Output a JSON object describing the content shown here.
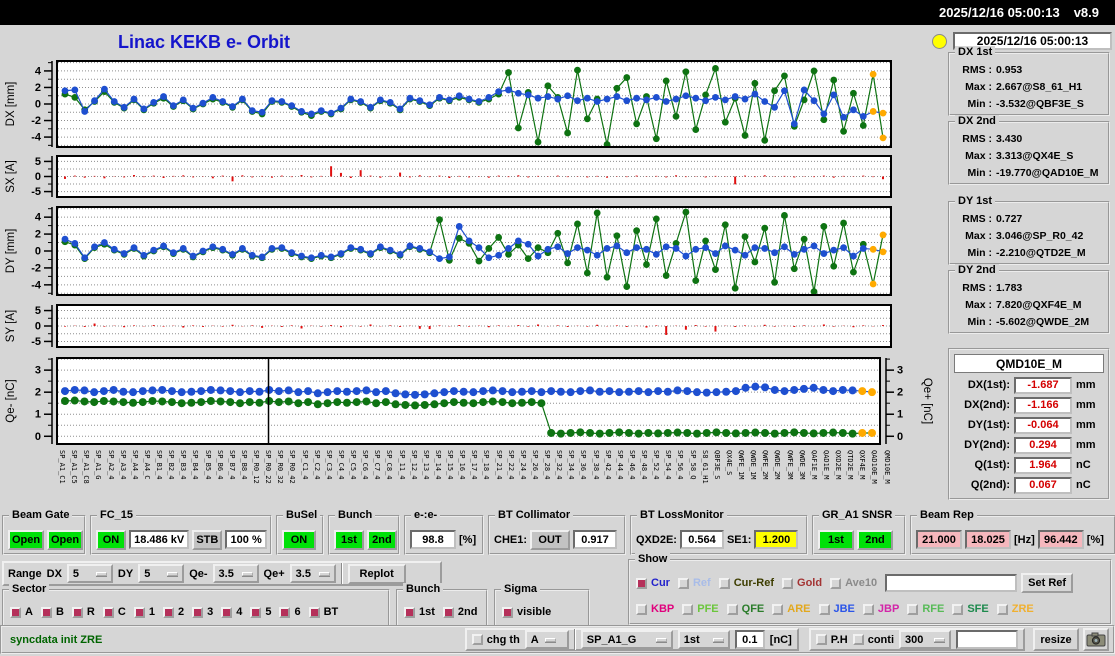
{
  "titlebar": {
    "datetime": "2025/12/16 05:00:13",
    "version": "v8.9"
  },
  "header": {
    "title": "Linac KEKB e- Orbit",
    "timestamp": "2025/12/16 05:00:13"
  },
  "colors": {
    "blue": "#1e4fd0",
    "green": "#0e7312",
    "red": "#e01010",
    "orange": "#ffaa00",
    "title_blue": "#1515cc",
    "value_red": "#d40000",
    "status_green": "#006400",
    "checked": "#b5305a",
    "lamp_yellow": "#ffff00"
  },
  "plot_order": [
    "dx",
    "sx",
    "dy",
    "sy",
    "q"
  ],
  "plots": {
    "dx": {
      "ylabel": "DX [mm]",
      "ymin": -5.2,
      "ymax": 5.2,
      "yticks": [
        4,
        2,
        0,
        -2,
        -4
      ],
      "grid_step": 1,
      "tail_orange": 2,
      "series": [
        {
          "color": "green",
          "values": [
            1.2,
            0.8,
            -0.7,
            0.3,
            1.5,
            0.2,
            -0.5,
            0.5,
            -0.7,
            0.1,
            0.7,
            -0.3,
            0.4,
            -0.6,
            0.0,
            0.6,
            0.2,
            -0.4,
            0.5,
            -0.9,
            -1.2,
            0.3,
            0.2,
            -0.3,
            -1.0,
            -1.4,
            -0.9,
            -1.2,
            -0.6,
            0.5,
            0.2,
            -0.5,
            0.4,
            0.1,
            -0.7,
            0.6,
            0.3,
            -0.2,
            0.7,
            0.4,
            0.8,
            0.5,
            0.2,
            0.6,
            1.2,
            3.8,
            -2.9,
            1.4,
            -4.6,
            2.2,
            0.8,
            -3.5,
            4.1,
            -1.8,
            0.6,
            -4.9,
            1.9,
            3.2,
            -2.4,
            0.9,
            -4.2,
            2.8,
            -1.5,
            3.9,
            -3.1,
            1.1,
            4.3,
            -2.2,
            0.7,
            -3.8,
            2.5,
            -4.4,
            1.6,
            3.4,
            -2.7,
            0.5,
            4.0,
            -1.9,
            2.9,
            -3.3,
            1.3,
            -2.6,
            3.6,
            -4.1
          ]
        },
        {
          "color": "blue",
          "values": [
            1.6,
            1.7,
            -0.9,
            0.4,
            1.8,
            0.3,
            -0.4,
            0.6,
            -0.6,
            0.2,
            0.9,
            -0.2,
            0.5,
            -0.5,
            0.1,
            0.8,
            0.3,
            -0.3,
            0.6,
            -0.8,
            -1.0,
            0.4,
            0.3,
            -0.2,
            -0.9,
            -1.2,
            -0.8,
            -1.1,
            -0.5,
            0.6,
            0.3,
            -0.4,
            0.5,
            0.2,
            -0.6,
            0.7,
            0.4,
            -0.1,
            0.8,
            0.5,
            1.0,
            0.6,
            0.3,
            0.8,
            1.5,
            1.7,
            1.3,
            1.1,
            0.7,
            0.9,
            0.6,
            1.0,
            0.4,
            0.7,
            0.3,
            0.6,
            0.9,
            0.4,
            0.7,
            0.5,
            0.8,
            0.3,
            0.6,
            1.0,
            0.7,
            0.4,
            0.8,
            0.5,
            0.9,
            0.6,
            1.2,
            0.3,
            -0.4,
            1.6,
            -2.4,
            1.7,
            0.4,
            -1.2,
            1.1,
            -1.6,
            -0.7,
            -1.5,
            -0.9,
            -1.1
          ]
        }
      ]
    },
    "sx": {
      "ylabel": "SX [A]",
      "ymin": -6.8,
      "ymax": 6.8,
      "yticks": [
        5,
        0,
        -5
      ],
      "grid_step": 2.5,
      "bars": [
        -0.8,
        0.3,
        -0.4,
        0.2,
        -0.6,
        0.1,
        -0.3,
        0.5,
        -0.2,
        0.3,
        -0.5,
        0.2,
        0.4,
        -0.3,
        0.1,
        -0.6,
        0.3,
        -1.6,
        0.4,
        -0.3,
        0.2,
        -0.4,
        0.3,
        -0.2,
        0.5,
        -0.3,
        0.2,
        3.4,
        1.2,
        -0.5,
        2.1,
        0.3,
        -0.4,
        0.2,
        1.3,
        -0.3,
        0.4,
        -0.2,
        0.3,
        -0.5,
        0.2,
        -0.3,
        0.1,
        -0.4,
        0.3,
        -0.2,
        0.4,
        -0.3,
        0.2,
        -0.1,
        0.3,
        -0.2,
        0.1,
        -0.3,
        0.2,
        -0.4,
        0.1,
        -0.2,
        0.3,
        -0.1,
        0.2,
        -0.3,
        0.4,
        -0.2,
        0.1,
        -0.3,
        0.2,
        -0.1,
        -2.6,
        0.3,
        -0.2,
        0.4,
        -0.1,
        0.2,
        -0.3,
        0.1,
        -0.2,
        0.3,
        -0.4,
        0.2,
        -0.1,
        0.3,
        -0.2,
        -0.9
      ]
    },
    "dy": {
      "ylabel": "DY [mm]",
      "ymin": -5.2,
      "ymax": 5.2,
      "yticks": [
        4,
        2,
        0,
        -2,
        -4
      ],
      "grid_step": 1,
      "tail_orange": 2,
      "series": [
        {
          "color": "green",
          "values": [
            1.1,
            0.7,
            -0.9,
            0.4,
            0.8,
            0.1,
            -0.4,
            0.3,
            -0.6,
            0.0,
            0.5,
            -0.3,
            0.2,
            -0.7,
            -0.1,
            0.4,
            0.1,
            -0.5,
            0.2,
            -0.6,
            -0.8,
            0.2,
            0.3,
            -0.3,
            -0.7,
            -0.9,
            -0.6,
            -0.8,
            -0.4,
            0.3,
            0.1,
            -0.4,
            0.4,
            0.0,
            -0.5,
            0.5,
            0.2,
            -0.2,
            3.7,
            -1.1,
            1.5,
            0.9,
            -1.2,
            0.3,
            1.6,
            -0.4,
            0.7,
            -0.9,
            0.4,
            -0.2,
            2.1,
            -1.4,
            3.2,
            -2.6,
            4.5,
            -3.1,
            1.8,
            -4.2,
            2.4,
            -1.6,
            3.8,
            -2.9,
            0.9,
            4.6,
            -3.5,
            1.2,
            -2.2,
            3.1,
            -4.4,
            1.7,
            -1.3,
            2.7,
            -3.7,
            4.2,
            -2.1,
            1.4,
            -4.8,
            2.9,
            -1.8,
            3.3,
            -2.5,
            0.8,
            -3.9,
            1.9
          ]
        },
        {
          "color": "blue",
          "values": [
            1.4,
            0.9,
            -0.8,
            0.5,
            1.0,
            0.2,
            -0.3,
            0.4,
            -0.5,
            0.1,
            0.6,
            -0.2,
            0.3,
            -0.6,
            0.0,
            0.5,
            0.2,
            -0.4,
            0.3,
            -0.5,
            -0.7,
            0.3,
            0.4,
            -0.2,
            -0.6,
            -0.8,
            -0.5,
            -0.7,
            -0.3,
            0.4,
            0.2,
            -0.3,
            0.5,
            0.1,
            -0.4,
            0.6,
            0.3,
            -0.1,
            -0.9,
            -0.7,
            2.9,
            1.2,
            0.4,
            -0.8,
            -0.5,
            0.3,
            1.2,
            0.8,
            -0.6,
            0.2,
            0.5,
            -0.3,
            0.4,
            0.1,
            -0.5,
            0.3,
            0.6,
            -0.2,
            0.4,
            0.2,
            -0.4,
            0.5,
            0.3,
            -0.6,
            0.2,
            0.4,
            -0.3,
            0.6,
            0.1,
            -0.5,
            0.4,
            0.3,
            -0.2,
            0.5,
            -0.4,
            0.2,
            0.6,
            -0.3,
            0.1,
            0.4,
            -0.6,
            0.3,
            0.2,
            -0.1
          ]
        }
      ]
    },
    "sy": {
      "ylabel": "SY [A]",
      "ymin": -6.8,
      "ymax": 6.8,
      "yticks": [
        5,
        0,
        -5
      ],
      "grid_step": 2.5,
      "bars": [
        -0.2,
        0.1,
        -0.3,
        0.8,
        -0.2,
        0.1,
        -0.4,
        0.2,
        -0.1,
        0.3,
        -0.2,
        0.1,
        -0.5,
        0.2,
        -0.3,
        0.1,
        -0.2,
        0.4,
        -0.1,
        0.2,
        -0.6,
        0.1,
        -0.3,
        0.2,
        -0.8,
        0.1,
        -0.2,
        0.3,
        -0.4,
        0.1,
        -0.2,
        0.5,
        -0.1,
        0.2,
        -0.3,
        0.1,
        -0.9,
        -1.0,
        0.2,
        -0.1,
        0.3,
        -0.2,
        0.1,
        -0.4,
        0.2,
        -0.1,
        0.3,
        -0.2,
        0.5,
        -0.1,
        0.2,
        -0.3,
        0.1,
        -0.2,
        0.4,
        -0.1,
        0.2,
        -0.3,
        0.1,
        -0.5,
        0.2,
        -2.9,
        0.1,
        -1.2,
        0.3,
        -0.2,
        -1.8,
        0.1,
        -0.3,
        0.2,
        -0.1,
        0.4,
        -0.2,
        0.1,
        -0.3,
        0.2,
        -0.1,
        0.5,
        -0.2,
        0.1,
        -0.4,
        0.2,
        -0.1,
        0.3
      ]
    },
    "q": {
      "ylabel": "Qe- [nC]",
      "ylabel_right": "Qe+ [nC]",
      "ymin": -0.35,
      "ymax": 3.55,
      "yticks": [
        3,
        2,
        1,
        0
      ],
      "grid_step": 0.5,
      "tail_orange": 2,
      "vline": 0.257,
      "series": [
        {
          "color": "green",
          "values": [
            1.6,
            1.62,
            1.58,
            1.55,
            1.6,
            1.58,
            1.55,
            1.52,
            1.55,
            1.6,
            1.58,
            1.55,
            1.5,
            1.52,
            1.55,
            1.6,
            1.58,
            1.55,
            1.5,
            1.55,
            1.52,
            1.6,
            1.55,
            1.58,
            1.5,
            1.55,
            1.45,
            1.5,
            1.55,
            1.52,
            1.55,
            1.58,
            1.5,
            1.55,
            1.45,
            1.42,
            1.4,
            1.42,
            1.45,
            1.5,
            1.55,
            1.52,
            1.5,
            1.55,
            1.58,
            1.55,
            1.5,
            1.52,
            1.55,
            1.5,
            0.15,
            0.12,
            0.15,
            0.18,
            0.15,
            0.12,
            0.15,
            0.18,
            0.15,
            0.12,
            0.15,
            0.13,
            0.15,
            0.17,
            0.15,
            0.12,
            0.15,
            0.18,
            0.15,
            0.13,
            0.15,
            0.17,
            0.15,
            0.12,
            0.15,
            0.18,
            0.15,
            0.13,
            0.15,
            0.17,
            0.15,
            0.12,
            0.15,
            0.15
          ]
        },
        {
          "color": "blue",
          "values": [
            2.05,
            2.1,
            2.08,
            2.0,
            2.05,
            2.1,
            2.02,
            2.0,
            2.05,
            2.08,
            2.1,
            2.05,
            2.0,
            2.02,
            2.05,
            2.1,
            2.08,
            2.05,
            2.0,
            2.05,
            2.02,
            2.1,
            2.05,
            2.08,
            2.0,
            2.05,
            1.95,
            2.0,
            2.05,
            2.02,
            2.05,
            2.08,
            2.0,
            2.05,
            1.95,
            1.9,
            1.88,
            1.9,
            1.95,
            2.0,
            2.05,
            2.02,
            2.0,
            2.05,
            2.08,
            2.05,
            2.0,
            2.02,
            2.05,
            2.0,
            2.05,
            2.02,
            2.0,
            2.05,
            2.08,
            2.02,
            2.05,
            2.0,
            2.02,
            2.05,
            2.0,
            2.05,
            2.02,
            2.08,
            2.05,
            2.0,
            1.98,
            2.0,
            2.02,
            2.05,
            2.2,
            2.25,
            2.22,
            2.1,
            2.05,
            2.1,
            2.15,
            2.2,
            2.1,
            2.05,
            2.1,
            2.08,
            2.05,
            2.0
          ]
        }
      ]
    }
  },
  "xaxis_labels": [
    "SP_A1_C1",
    "SP_A1_C5",
    "SP_A1_C8",
    "SP_A1_G",
    "SP_A2_4",
    "SP_A3_4",
    "SP_A4_4",
    "SP_A4_C",
    "SP_B1_4",
    "SP_B2_4",
    "SP_B3_4",
    "SP_B4_4",
    "SP_B5_4",
    "SP_B6_4",
    "SP_B7_4",
    "SP_B8_4",
    "SP_R0_12",
    "SP_R0_22",
    "SP_R0_32",
    "SP_R0_42",
    "SP_C1_4",
    "SP_C2_4",
    "SP_C3_4",
    "SP_C4_4",
    "SP_C5_4",
    "SP_C6_4",
    "SP_C7_4",
    "SP_C8_4",
    "SP_11_4",
    "SP_12_4",
    "SP_13_4",
    "SP_14_4",
    "SP_15_4",
    "SP_16_4",
    "SP_17_4",
    "SP_18_4",
    "SP_21_4",
    "SP_22_4",
    "SP_24_4",
    "SP_26_4",
    "SP_28_4",
    "SP_32_4",
    "SP_34_4",
    "SP_36_4",
    "SP_38_4",
    "SP_42_4",
    "SP_44_4",
    "SP_46_4",
    "SP_48_4",
    "SP_52_4",
    "SP_54_4",
    "SP_56_4",
    "SP_58_Q",
    "S8_61_H1",
    "QBF3E_S",
    "QX4E_S",
    "QWFE_1M",
    "QWDE_1M",
    "QWFE_2M",
    "QWDE_2M",
    "QWFE_3M",
    "QWDE_3M",
    "QAF1E_M",
    "QAD1E_M",
    "QXD2E_M",
    "QTD2E_M",
    "QXF4E_M",
    "QAD10E_M",
    "QMD10E_M"
  ],
  "right_panel": {
    "labels": {
      "rms": "RMS :",
      "max": "Max :",
      "min": "Min :"
    },
    "stats": [
      {
        "name": "DX 1st",
        "rms": "0.953",
        "max": "2.667@S8_61_H1",
        "min": "-3.532@QBF3E_S"
      },
      {
        "name": "DX 2nd",
        "rms": "3.430",
        "max": "3.313@QX4E_S",
        "min": "-19.770@QAD10E_M"
      },
      {
        "name": "DY 1st",
        "rms": "0.727",
        "max": "3.046@SP_R0_42",
        "min": "-2.210@QTD2E_M"
      },
      {
        "name": "DY 2nd",
        "rms": "1.783",
        "max": "7.820@QXF4E_M",
        "min": "-5.602@QWDE_2M"
      }
    ],
    "monitor": {
      "title": "QMD10E_M",
      "rows": [
        {
          "label": "DX(1st):",
          "value": "-1.687",
          "unit": "mm"
        },
        {
          "label": "DX(2nd):",
          "value": "-1.166",
          "unit": "mm"
        },
        {
          "label": "DY(1st):",
          "value": "-0.064",
          "unit": "mm"
        },
        {
          "label": "DY(2nd):",
          "value": "0.294",
          "unit": "mm"
        },
        {
          "label": "Q(1st):",
          "value": "1.964",
          "unit": "nC"
        },
        {
          "label": "Q(2nd):",
          "value": "0.067",
          "unit": "nC"
        }
      ]
    }
  },
  "controls": {
    "beam_gate": {
      "label": "Beam Gate",
      "buttons": [
        "Open",
        "Open"
      ]
    },
    "fc15": {
      "label": "FC_15",
      "on": "ON",
      "kv": "18.486 kV",
      "stb": "STB",
      "pct": "100 %"
    },
    "busel": {
      "label": "BuSel",
      "on": "ON"
    },
    "bunch": {
      "label": "Bunch",
      "buttons": [
        "1st",
        "2nd"
      ]
    },
    "ee": {
      "label": "e-:e-",
      "value": "98.8",
      "unit": "[%]"
    },
    "bt_collimator": {
      "label": "BT Collimator",
      "che1_label": "CHE1:",
      "che1_state": "OUT",
      "value": "0.917"
    },
    "bt_lossmonitor": {
      "label": "BT LossMonitor",
      "qxd2e_label": "QXD2E:",
      "qxd2e": "0.564",
      "se1_label": "SE1:",
      "se1": "1.200"
    },
    "gr_a1": {
      "label": "GR_A1 SNSR",
      "buttons": [
        "1st",
        "2nd"
      ]
    },
    "beam_rep": {
      "label": "Beam Rep",
      "v1": "21.000",
      "v2": "18.025",
      "hz": "[Hz]",
      "v3": "96.442",
      "pct": "[%]"
    }
  },
  "range_row": {
    "label": "Range",
    "items": [
      {
        "label": "DX",
        "value": "5"
      },
      {
        "label": "DY",
        "value": "5"
      },
      {
        "label": "Qe-",
        "value": "3.5"
      },
      {
        "label": "Qe+",
        "value": "3.5"
      }
    ],
    "replot": "Replot"
  },
  "sector": {
    "label": "Sector",
    "items": [
      {
        "label": "A",
        "checked": true
      },
      {
        "label": "B",
        "checked": true
      },
      {
        "label": "R",
        "checked": true
      },
      {
        "label": "C",
        "checked": true
      },
      {
        "label": "1",
        "checked": true
      },
      {
        "label": "2",
        "checked": true
      },
      {
        "label": "3",
        "checked": true
      },
      {
        "label": "4",
        "checked": true
      },
      {
        "label": "5",
        "checked": true
      },
      {
        "label": "6",
        "checked": true
      },
      {
        "label": "BT",
        "checked": true
      }
    ]
  },
  "bunch_row3": {
    "label": "Bunch",
    "items": [
      {
        "label": "1st",
        "checked": true
      },
      {
        "label": "2nd",
        "checked": true
      }
    ]
  },
  "sigma": {
    "label": "Sigma",
    "items": [
      {
        "label": "visible",
        "checked": true
      }
    ]
  },
  "show": {
    "label": "Show",
    "row1": [
      {
        "label": "Cur",
        "color": "#2222cc",
        "checked": true
      },
      {
        "label": "Ref",
        "color": "#a8bce8",
        "checked": false
      },
      {
        "label": "Cur-Ref",
        "color": "#3d3d00",
        "checked": false
      },
      {
        "label": "Gold",
        "color": "#a33333",
        "checked": false
      },
      {
        "label": "Ave10",
        "color": "#8a8a8a",
        "checked": false
      }
    ],
    "ref_input": "",
    "set_ref": "Set Ref",
    "row2": [
      {
        "label": "KBP",
        "color": "#e0007c",
        "checked": false
      },
      {
        "label": "PFE",
        "color": "#6cc63c",
        "checked": false
      },
      {
        "label": "QFE",
        "color": "#2b7d2b",
        "checked": false
      },
      {
        "label": "ARE",
        "color": "#e2a81e",
        "checked": false
      },
      {
        "label": "JBE",
        "color": "#2b55e8",
        "checked": false
      },
      {
        "label": "JBP",
        "color": "#d324a8",
        "checked": false
      },
      {
        "label": "RFE",
        "color": "#57bb57",
        "checked": false
      },
      {
        "label": "SFE",
        "color": "#1d8a4d",
        "checked": false
      },
      {
        "label": "ZRE",
        "color": "#f0b030",
        "checked": false
      }
    ]
  },
  "statusbar": {
    "message": "syncdata init ZRE",
    "chg_th": "chg th",
    "chg_checked": false,
    "chg_sel": "A",
    "sp_sel": "SP_A1_G",
    "bunch_sel": "1st",
    "threshold": "0.1",
    "unit": "[nC]",
    "ph": "P.H",
    "ph_checked": false,
    "conti": "conti",
    "conti_checked": false,
    "points": "300",
    "extra": "",
    "resize": "resize"
  }
}
